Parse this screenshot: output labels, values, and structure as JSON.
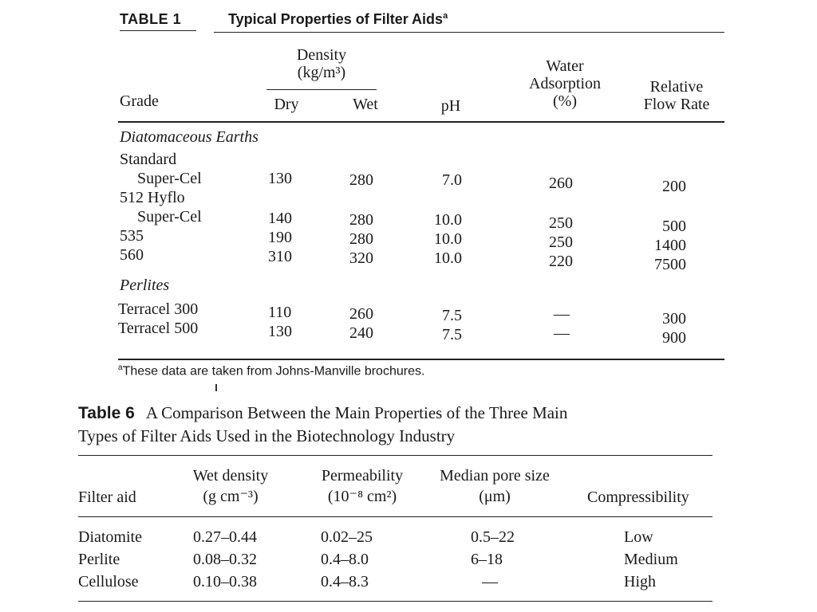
{
  "table1": {
    "label": "TABLE 1",
    "title": "Typical Properties of Filter Aids",
    "title_mark": "a",
    "headers": {
      "grade": "Grade",
      "density_line1": "Density",
      "density_line2": "(kg/m³)",
      "dry": "Dry",
      "wet": "Wet",
      "ph": "pH",
      "water_line1": "Water",
      "water_line2": "Adsorption",
      "water_line3": "(%)",
      "flow_line1": "Relative",
      "flow_line2": "Flow Rate"
    },
    "group1": "Diatomaceous Earths",
    "rows1": [
      {
        "name": "Standard",
        "name2": "Super-Cel",
        "dry": "130",
        "wet": "280",
        "ph": "7.0",
        "water": "260",
        "flow": "200"
      },
      {
        "name": "512 Hyflo",
        "name2": "Super-Cel",
        "dry": "140",
        "wet": "280",
        "ph": "10.0",
        "water": "250",
        "flow": "500"
      },
      {
        "name": "535",
        "dry": "190",
        "wet": "280",
        "ph": "10.0",
        "water": "250",
        "flow": "1400"
      },
      {
        "name": "560",
        "dry": "310",
        "wet": "320",
        "ph": "10.0",
        "water": "220",
        "flow": "7500"
      }
    ],
    "group2": "Perlites",
    "rows2": [
      {
        "name": "Terracel 300",
        "dry": "110",
        "wet": "260",
        "ph": "7.5",
        "water": "—",
        "flow": "300"
      },
      {
        "name": "Terracel 500",
        "dry": "130",
        "wet": "240",
        "ph": "7.5",
        "water": "—",
        "flow": "900"
      }
    ],
    "footnote_mark": "a",
    "footnote": "These data are taken from Johns-Manville brochures."
  },
  "table6": {
    "label": "Table 6",
    "caption_line1": "A Comparison Between the Main Properties of the Three Main",
    "caption_line2": "Types of Filter Aids Used in the Biotechnology Industry",
    "headers": {
      "filter_aid": "Filter aid",
      "wet_density_1": "Wet density",
      "wet_density_2": "(g cm⁻³)",
      "permeability_1": "Permeability",
      "permeability_2": "(10⁻⁸ cm²)",
      "pore_1": "Median pore size",
      "pore_2": "(μm)",
      "compressibility": "Compressibility"
    },
    "rows": [
      {
        "filter_aid": "Diatomite",
        "wet_density": "0.27–0.44",
        "permeability": "0.02–25",
        "pore": "0.5–22",
        "compressibility": "Low"
      },
      {
        "filter_aid": "Perlite",
        "wet_density": "0.08–0.32",
        "permeability": "0.4–8.0",
        "pore": "6–18",
        "compressibility": "Medium"
      },
      {
        "filter_aid": "Cellulose",
        "wet_density": "0.10–0.38",
        "permeability": "0.4–8.3",
        "pore": "—",
        "compressibility": "High"
      }
    ]
  }
}
